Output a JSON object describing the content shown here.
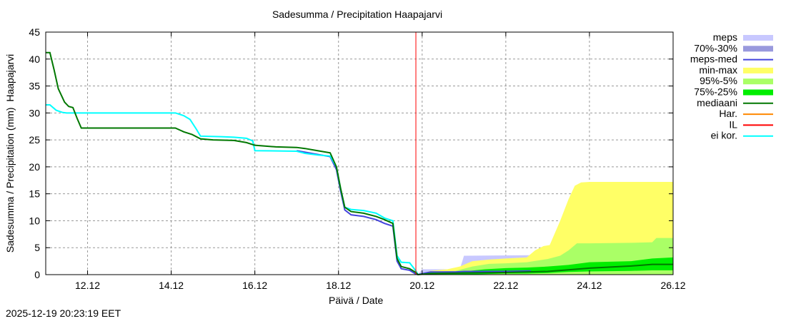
{
  "chart_data": {
    "type": "line",
    "title": "Sadesumma / Precipitation  Haapajarvi",
    "xlabel": "Päivä / Date",
    "ylabel": "Sadesumma / Precipitation (mm)  Haapajarvi",
    "xlim": [
      11.0,
      26.0
    ],
    "ylim": [
      0,
      45
    ],
    "yticks": [
      0,
      5,
      10,
      15,
      20,
      25,
      30,
      35,
      40,
      45
    ],
    "xticks": [
      {
        "label": "12.12",
        "day": 12
      },
      {
        "label": "14.12",
        "day": 14
      },
      {
        "label": "16.12",
        "day": 16
      },
      {
        "label": "18.12",
        "day": 18
      },
      {
        "label": "20.12",
        "day": 20
      },
      {
        "label": "22.12",
        "day": 22
      },
      {
        "label": "24.12",
        "day": 24
      },
      {
        "label": "26.12",
        "day": 26
      }
    ],
    "grid": true,
    "legend_position": "right",
    "vertical_marker": {
      "label": "IL",
      "day": 19.85,
      "color": "#ff0000"
    },
    "series": [
      {
        "name": "mediaani",
        "color": "#007700",
        "type": "line",
        "points": [
          [
            11.0,
            41.2
          ],
          [
            11.1,
            41.2
          ],
          [
            11.2,
            38
          ],
          [
            11.3,
            34.5
          ],
          [
            11.45,
            32
          ],
          [
            11.55,
            31.2
          ],
          [
            11.65,
            31
          ],
          [
            11.75,
            29
          ],
          [
            11.85,
            27.2
          ],
          [
            14.1,
            27.2
          ],
          [
            14.3,
            26.5
          ],
          [
            14.5,
            26
          ],
          [
            14.7,
            25.2
          ],
          [
            15.0,
            25
          ],
          [
            15.5,
            24.9
          ],
          [
            15.8,
            24.5
          ],
          [
            16.0,
            24
          ],
          [
            16.5,
            23.7
          ],
          [
            17.0,
            23.6
          ],
          [
            17.2,
            23.4
          ],
          [
            17.5,
            23.0
          ],
          [
            17.8,
            22.6
          ],
          [
            17.95,
            20
          ],
          [
            18.05,
            16
          ],
          [
            18.15,
            12.5
          ],
          [
            18.3,
            11.7
          ],
          [
            18.6,
            11.4
          ],
          [
            18.9,
            10.8
          ],
          [
            19.1,
            10.2
          ],
          [
            19.3,
            9.5
          ],
          [
            19.4,
            3
          ],
          [
            19.5,
            1.5
          ],
          [
            19.7,
            1.1
          ],
          [
            19.85,
            0.4
          ],
          [
            19.9,
            0
          ],
          [
            20.2,
            0.2
          ],
          [
            21.0,
            0.3
          ],
          [
            22.0,
            0.4
          ],
          [
            23.0,
            0.6
          ],
          [
            23.5,
            0.9
          ],
          [
            24.0,
            1.2
          ],
          [
            25.0,
            1.6
          ],
          [
            25.5,
            1.9
          ],
          [
            26.0,
            1.9
          ]
        ]
      },
      {
        "name": "ei kor.",
        "color": "#00ffff",
        "type": "line",
        "points": [
          [
            11.0,
            31.5
          ],
          [
            11.1,
            31.5
          ],
          [
            11.25,
            30.5
          ],
          [
            11.4,
            30.1
          ],
          [
            11.5,
            30
          ],
          [
            14.1,
            30
          ],
          [
            14.3,
            29.5
          ],
          [
            14.45,
            28.8
          ],
          [
            14.6,
            27
          ],
          [
            14.7,
            25.7
          ],
          [
            15.2,
            25.6
          ],
          [
            15.5,
            25.5
          ],
          [
            15.8,
            25.3
          ],
          [
            15.95,
            24.8
          ],
          [
            16.0,
            23
          ],
          [
            17.0,
            22.9
          ],
          [
            17.2,
            22.5
          ],
          [
            17.5,
            22.2
          ],
          [
            17.8,
            22
          ],
          [
            17.95,
            20
          ],
          [
            18.05,
            16
          ],
          [
            18.15,
            12.5
          ],
          [
            18.3,
            12.1
          ],
          [
            18.6,
            11.9
          ],
          [
            18.9,
            11.4
          ],
          [
            19.1,
            10.5
          ],
          [
            19.3,
            10.0
          ],
          [
            19.4,
            3.5
          ],
          [
            19.5,
            2.3
          ],
          [
            19.7,
            2.2
          ],
          [
            19.85,
            0.7
          ],
          [
            19.9,
            0
          ]
        ]
      },
      {
        "name": "meps-med",
        "color": "#4444dd",
        "type": "line",
        "points": [
          [
            17.0,
            23.0
          ],
          [
            17.5,
            22.3
          ],
          [
            17.8,
            21.9
          ],
          [
            17.95,
            19.5
          ],
          [
            18.05,
            15.5
          ],
          [
            18.15,
            12.0
          ],
          [
            18.3,
            11.1
          ],
          [
            18.6,
            10.8
          ],
          [
            18.9,
            10.2
          ],
          [
            19.1,
            9.5
          ],
          [
            19.3,
            9.0
          ],
          [
            19.4,
            2.5
          ],
          [
            19.5,
            1.1
          ],
          [
            19.7,
            0.8
          ],
          [
            19.85,
            0.1
          ],
          [
            19.9,
            0
          ],
          [
            20.2,
            0.5
          ],
          [
            20.8,
            0.5
          ],
          [
            21.0,
            0.6
          ],
          [
            22.0,
            0.6
          ],
          [
            22.6,
            0.7
          ]
        ]
      }
    ],
    "bands": [
      {
        "name": "min-max",
        "color": "#ffff66",
        "x": [
          19.9,
          20.2,
          20.6,
          20.9,
          21.2,
          21.6,
          22.0,
          22.5,
          22.7,
          22.9,
          23.05,
          23.3,
          23.5,
          23.65,
          23.8,
          24.0,
          26.0
        ],
        "low": [
          0,
          0,
          0,
          0,
          0,
          0,
          0,
          0,
          0,
          0,
          0,
          0,
          0,
          0,
          0,
          0,
          0
        ],
        "high": [
          0,
          0.7,
          1.0,
          1.5,
          2.5,
          2.8,
          3.0,
          3.2,
          4.5,
          5.3,
          5.5,
          10,
          14,
          16.5,
          17.1,
          17.2,
          17.2
        ]
      },
      {
        "name": "95%-5%",
        "color": "#aaff66",
        "x": [
          19.9,
          20.2,
          20.8,
          21.2,
          21.6,
          22.0,
          22.5,
          23.0,
          23.3,
          23.5,
          23.7,
          24.0,
          25.0,
          25.5,
          25.6,
          26.0
        ],
        "low": [
          0,
          0,
          0,
          0,
          0,
          0,
          0,
          0,
          0,
          0,
          0,
          0,
          0,
          0,
          0,
          0
        ],
        "high": [
          0,
          0.5,
          0.7,
          1.5,
          2.0,
          2.1,
          2.3,
          2.9,
          3.5,
          4.5,
          5.8,
          5.8,
          5.9,
          6.0,
          6.8,
          6.8
        ]
      },
      {
        "name": "75%-25%",
        "color": "#00ee00",
        "x": [
          19.9,
          20.2,
          21.0,
          21.5,
          22.0,
          22.5,
          23.0,
          23.5,
          24.0,
          25.0,
          25.5,
          26.0
        ],
        "low": [
          0,
          0,
          0,
          0.1,
          0.2,
          0.2,
          0.3,
          0.5,
          0.6,
          0.7,
          0.8,
          0.8
        ],
        "high": [
          0,
          0.4,
          0.6,
          1.0,
          1.2,
          1.3,
          1.5,
          1.8,
          2.3,
          2.5,
          3.0,
          3.2
        ]
      },
      {
        "name": "meps",
        "color": "#c8c8ff",
        "x": [
          19.9,
          20.0,
          20.9,
          21.0,
          21.05,
          22.6,
          22.65
        ],
        "low": [
          0,
          0,
          0,
          0,
          0,
          0,
          0
        ],
        "high": [
          0,
          1.0,
          1.0,
          3.5,
          3.5,
          3.6,
          0
        ]
      },
      {
        "name": "70%-30%",
        "color": "#9999dd",
        "x": [],
        "low": [],
        "high": []
      }
    ],
    "legend": [
      {
        "label": "meps",
        "color": "#c8c8ff",
        "kind": "band"
      },
      {
        "label": "70%-30%",
        "color": "#9999dd",
        "kind": "band"
      },
      {
        "label": "meps-med",
        "color": "#4444dd",
        "kind": "line"
      },
      {
        "label": "min-max",
        "color": "#ffff66",
        "kind": "band"
      },
      {
        "label": "95%-5%",
        "color": "#aaff66",
        "kind": "band"
      },
      {
        "label": "75%-25%",
        "color": "#00ee00",
        "kind": "band"
      },
      {
        "label": "mediaani",
        "color": "#007700",
        "kind": "line"
      },
      {
        "label": "Har.",
        "color": "#ff8800",
        "kind": "line"
      },
      {
        "label": "IL",
        "color": "#ff0000",
        "kind": "line"
      },
      {
        "label": "ei kor.",
        "color": "#00ffff",
        "kind": "line"
      }
    ]
  },
  "footer": {
    "timestamp": "2025-12-19 20:23:19 EET"
  }
}
